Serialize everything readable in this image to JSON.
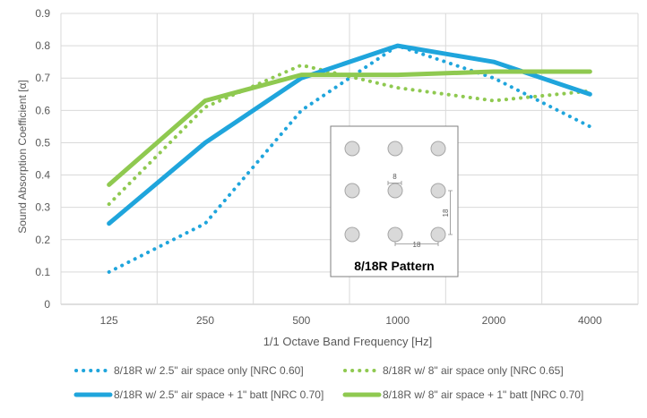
{
  "chart_data": {
    "type": "line",
    "title": "",
    "xlabel": "1/1 Octave Band Frequency [Hz]",
    "ylabel": "Sound Absorption Coefficient [α]",
    "categories": [
      "125",
      "250",
      "500",
      "1000",
      "2000",
      "4000"
    ],
    "ylim": [
      0,
      0.9
    ],
    "yticks": [
      "0",
      "0.1",
      "0.2",
      "0.3",
      "0.4",
      "0.5",
      "0.6",
      "0.7",
      "0.8",
      "0.9"
    ],
    "grid": true,
    "legend_placement": "bottom",
    "series": [
      {
        "name": "8/18R w/ 2.5\" air space only [NRC 0.60]",
        "values": [
          0.1,
          0.25,
          0.6,
          0.8,
          0.7,
          0.55
        ],
        "color": "#1fa5dc",
        "style": "dotted"
      },
      {
        "name": "8/18R w/ 8\" air space only [NRC 0.65]",
        "values": [
          0.31,
          0.61,
          0.74,
          0.67,
          0.63,
          0.66
        ],
        "color": "#8fc950",
        "style": "dotted"
      },
      {
        "name": "8/18R w/ 2.5\" air space + 1\" batt [NRC 0.70]",
        "values": [
          0.25,
          0.5,
          0.7,
          0.8,
          0.75,
          0.65
        ],
        "color": "#1fa5dc",
        "style": "solid"
      },
      {
        "name": "8/18R w/ 8\" air space + 1\" batt [NRC 0.70]",
        "values": [
          0.37,
          0.63,
          0.71,
          0.71,
          0.72,
          0.72
        ],
        "color": "#8fc950",
        "style": "solid"
      }
    ],
    "inset": {
      "caption": "8/18R Pattern",
      "hole_label": "8",
      "spacing_vertical_label": "18",
      "spacing_horizontal_label": "18"
    }
  }
}
